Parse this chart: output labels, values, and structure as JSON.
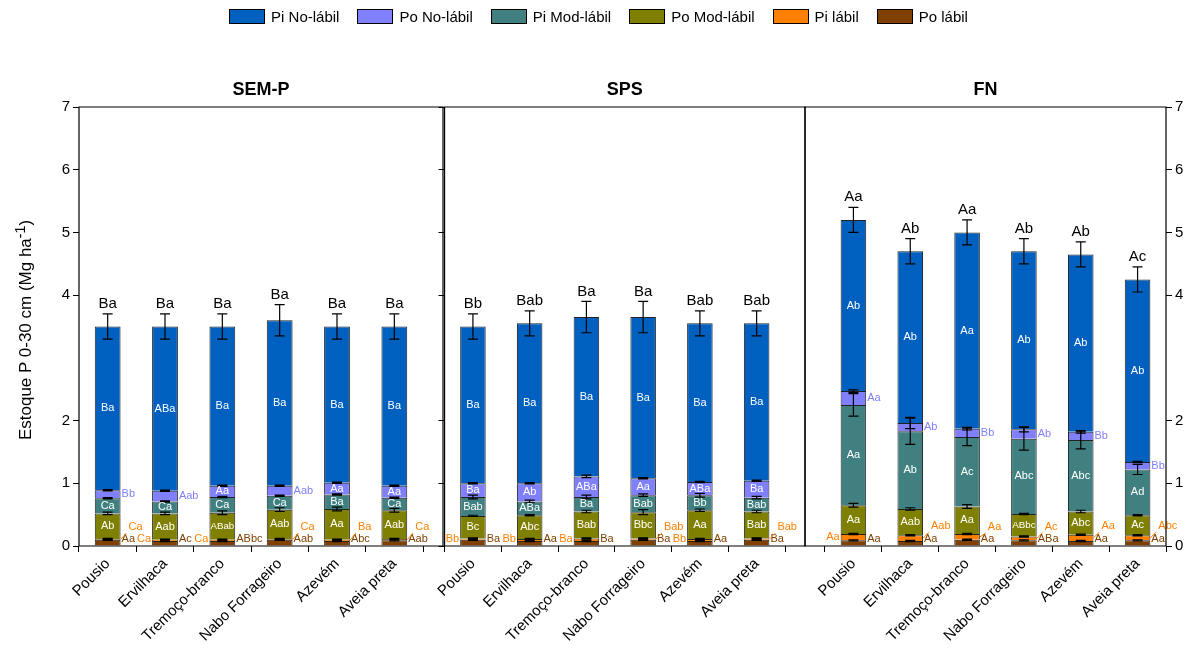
{
  "chart_data": [
    {
      "type": "bar",
      "title": "SEM-P",
      "ylabel": "Estoque P 0-30 cm (Mg ha$^{-1}$)",
      "legend": "top",
      "stacked": true,
      "categories": [
        "Pousio",
        "Ervilhaca",
        "Tremoço-branco",
        "Nabo Forrageiro",
        "Azevém",
        "Aveia preta"
      ],
      "ylim": [
        0,
        7
      ],
      "yticks": [
        0,
        1,
        2,
        4,
        5,
        6,
        7
      ],
      "totals": [
        "Ba",
        "Ba",
        "Ba",
        "Ba",
        "Ba",
        "Ba"
      ],
      "series": [
        {
          "name": "Po lábil",
          "color": "#804000",
          "values": [
            0.1,
            0.08,
            0.08,
            0.1,
            0.08,
            0.09
          ],
          "errors": [
            0.01,
            0.01,
            0.01,
            0.01,
            0.01,
            0.01
          ],
          "value_labels": [
            "Aa",
            "Ac",
            "ABbc",
            "Aab",
            "Abc",
            "Aab"
          ]
        },
        {
          "name": "Pi lábil",
          "color": "#ff8000",
          "values": [
            0.01,
            0.02,
            0.02,
            0.01,
            0.02,
            0.02
          ],
          "errors": [
            0.01,
            0.01,
            0.01,
            0.01,
            0.01,
            0.01
          ],
          "value_labels": [
            "Ca",
            "Ca",
            "Ca",
            "Ca",
            "Ba",
            "Ca"
          ]
        },
        {
          "name": "Po Mod-lábil",
          "color": "#808000",
          "values": [
            0.41,
            0.42,
            0.43,
            0.47,
            0.49,
            0.46
          ],
          "errors": [
            0.02,
            0.02,
            0.03,
            0.03,
            0.03,
            0.03
          ],
          "value_labels": [
            "Ab",
            "Aab",
            "ABab",
            "Aab",
            "Aa",
            "Aab"
          ]
        },
        {
          "name": "Pi Mod-lábil",
          "color": "#408080",
          "values": [
            0.24,
            0.19,
            0.25,
            0.22,
            0.23,
            0.2
          ],
          "errors": [
            0.01,
            0.01,
            0.01,
            0.01,
            0.01,
            0.01
          ],
          "value_labels": [
            "Ca",
            "Ca",
            "Ca",
            "Ca",
            "Ba",
            "Ca"
          ]
        },
        {
          "name": "Po No-lábil",
          "color": "#8080ff",
          "values": [
            0.13,
            0.17,
            0.18,
            0.16,
            0.19,
            0.19
          ],
          "errors": [
            0.01,
            0.01,
            0.01,
            0.01,
            0.01,
            0.01
          ],
          "value_labels": [
            "Bb",
            "Aab",
            "Aa",
            "Aab",
            "Aa",
            "Aa"
          ]
        },
        {
          "name": "Pi No-lábil",
          "color": "#0060c0",
          "values": [
            2.61,
            2.62,
            2.54,
            2.64,
            2.49,
            2.54
          ],
          "errors": [
            0.2,
            0.2,
            0.2,
            0.25,
            0.2,
            0.2
          ],
          "value_labels": [
            "Ba",
            "ABa",
            "Ba",
            "Ba",
            "Ba",
            "Ba"
          ]
        }
      ]
    },
    {
      "type": "bar",
      "title": "SPS",
      "stacked": true,
      "tick_labels": "x",
      "categories": [
        "Pousio",
        "Ervilhaca",
        "Tremoço-branco",
        "Nabo Forrageiro",
        "Azevém",
        "Aveia preta"
      ],
      "ylim": [
        0,
        7
      ],
      "yticks": [
        0,
        1,
        2,
        4,
        5,
        6,
        7
      ],
      "totals": [
        "Bb",
        "Bab",
        "Ba",
        "Ba",
        "Bab",
        "Bab"
      ],
      "series": [
        {
          "color": "#804000",
          "values": [
            0.1,
            0.08,
            0.08,
            0.1,
            0.08,
            0.1
          ],
          "errors": [
            0.01,
            0.01,
            0.01,
            0.01,
            0.01,
            0.01
          ],
          "value_labels": [
            "Ba",
            "Aa",
            "Ba",
            "Ba",
            "Aa",
            "Ba"
          ]
        },
        {
          "color": "#ff8000",
          "values": [
            0.02,
            0.03,
            0.04,
            0.02,
            0.03,
            0.02
          ],
          "errors": [
            0.01,
            0.01,
            0.01,
            0.01,
            0.01,
            0.01
          ],
          "value_labels": [
            "Bb",
            "Bb",
            "Ba",
            "Bab",
            "Bb",
            "Bab"
          ]
        },
        {
          "color": "#808000",
          "values": [
            0.36,
            0.38,
            0.43,
            0.42,
            0.46,
            0.43
          ],
          "errors": [
            0.01,
            0.01,
            0.02,
            0.04,
            0.02,
            0.02
          ],
          "value_labels": [
            "Bc",
            "Abc",
            "Bab",
            "Bbc",
            "Aa",
            "Bab"
          ]
        },
        {
          "color": "#408080",
          "values": [
            0.3,
            0.22,
            0.23,
            0.27,
            0.24,
            0.22
          ],
          "errors": [
            0.03,
            0.02,
            0.03,
            0.02,
            0.03,
            0.02
          ],
          "value_labels": [
            "Bab",
            "ABa",
            "Ba",
            "Bab",
            "Bb",
            "Bab"
          ]
        },
        {
          "color": "#8080ff",
          "values": [
            0.22,
            0.29,
            0.33,
            0.27,
            0.21,
            0.27
          ],
          "errors": [
            0.01,
            0.01,
            0.02,
            0.01,
            0.01,
            0.01
          ],
          "value_labels": [
            "Ba",
            "Ab",
            "ABa",
            "Aa",
            "ABa",
            "Ba"
          ]
        },
        {
          "color": "#0060c0",
          "values": [
            2.5,
            2.55,
            2.54,
            2.57,
            2.53,
            2.51
          ],
          "errors": [
            0.2,
            0.2,
            0.25,
            0.25,
            0.2,
            0.2
          ],
          "value_labels": [
            "Ba",
            "Ba",
            "Ba",
            "Ba",
            "Ba",
            "Ba"
          ]
        }
      ]
    },
    {
      "type": "bar",
      "title": "FN",
      "stacked": true,
      "categories": [
        "Pousio",
        "Ervilhaca",
        "Tremoço-branco",
        "Nabo Forrageiro",
        "Azevém",
        "Aveia preta"
      ],
      "ylim": [
        0,
        7
      ],
      "yticks": [
        0,
        1,
        2,
        4,
        5,
        6,
        7
      ],
      "totals": [
        "Aa",
        "Ab",
        "Aa",
        "Ab",
        "Ab",
        "Ac"
      ],
      "series": [
        {
          "color": "#804000",
          "values": [
            0.09,
            0.08,
            0.1,
            0.09,
            0.08,
            0.09
          ],
          "errors": [
            0.01,
            0.01,
            0.01,
            0.01,
            0.01,
            0.01
          ],
          "value_labels": [
            "Aa",
            "Aa",
            "Aa",
            "ABa",
            "Aa",
            "Aa"
          ]
        },
        {
          "color": "#ff8000",
          "values": [
            0.1,
            0.09,
            0.09,
            0.06,
            0.1,
            0.08
          ],
          "errors": [
            0.01,
            0.01,
            0.01,
            0.01,
            0.01,
            0.01
          ],
          "value_labels": [
            "Aa",
            "Aab",
            "Aa",
            "Ac",
            "Aa",
            "Abc"
          ]
        },
        {
          "color": "#808000",
          "values": [
            0.46,
            0.42,
            0.44,
            0.36,
            0.37,
            0.32
          ],
          "errors": [
            0.03,
            0.02,
            0.03,
            0.01,
            0.02,
            0.01
          ],
          "value_labels": [
            "Aa",
            "Aab",
            "Aa",
            "ABbc",
            "Abc",
            "Ac"
          ]
        },
        {
          "color": "#408080",
          "values": [
            1.6,
            1.24,
            1.11,
            1.2,
            1.14,
            0.73
          ],
          "errors": [
            0.18,
            0.21,
            0.14,
            0.18,
            0.14,
            0.08
          ],
          "value_labels": [
            "Aa",
            "Ab",
            "Ac",
            "Abc",
            "Abc",
            "Ad"
          ]
        },
        {
          "color": "#8080ff",
          "values": [
            0.22,
            0.13,
            0.13,
            0.15,
            0.13,
            0.12
          ],
          "errors": [
            0.02,
            0.09,
            0.02,
            0.04,
            0.02,
            0.01
          ],
          "value_labels": [
            "Aa",
            "Ab",
            "Bb",
            "Ab",
            "Bb",
            "Bb"
          ]
        },
        {
          "color": "#0060c0",
          "values": [
            2.73,
            2.74,
            3.13,
            2.84,
            2.83,
            2.91
          ],
          "errors": [
            0.2,
            0.2,
            0.2,
            0.2,
            0.2,
            0.2
          ],
          "value_labels": [
            "Ab",
            "Ab",
            "Aa",
            "Ab",
            "Ab",
            "Ab"
          ]
        }
      ]
    }
  ]
}
